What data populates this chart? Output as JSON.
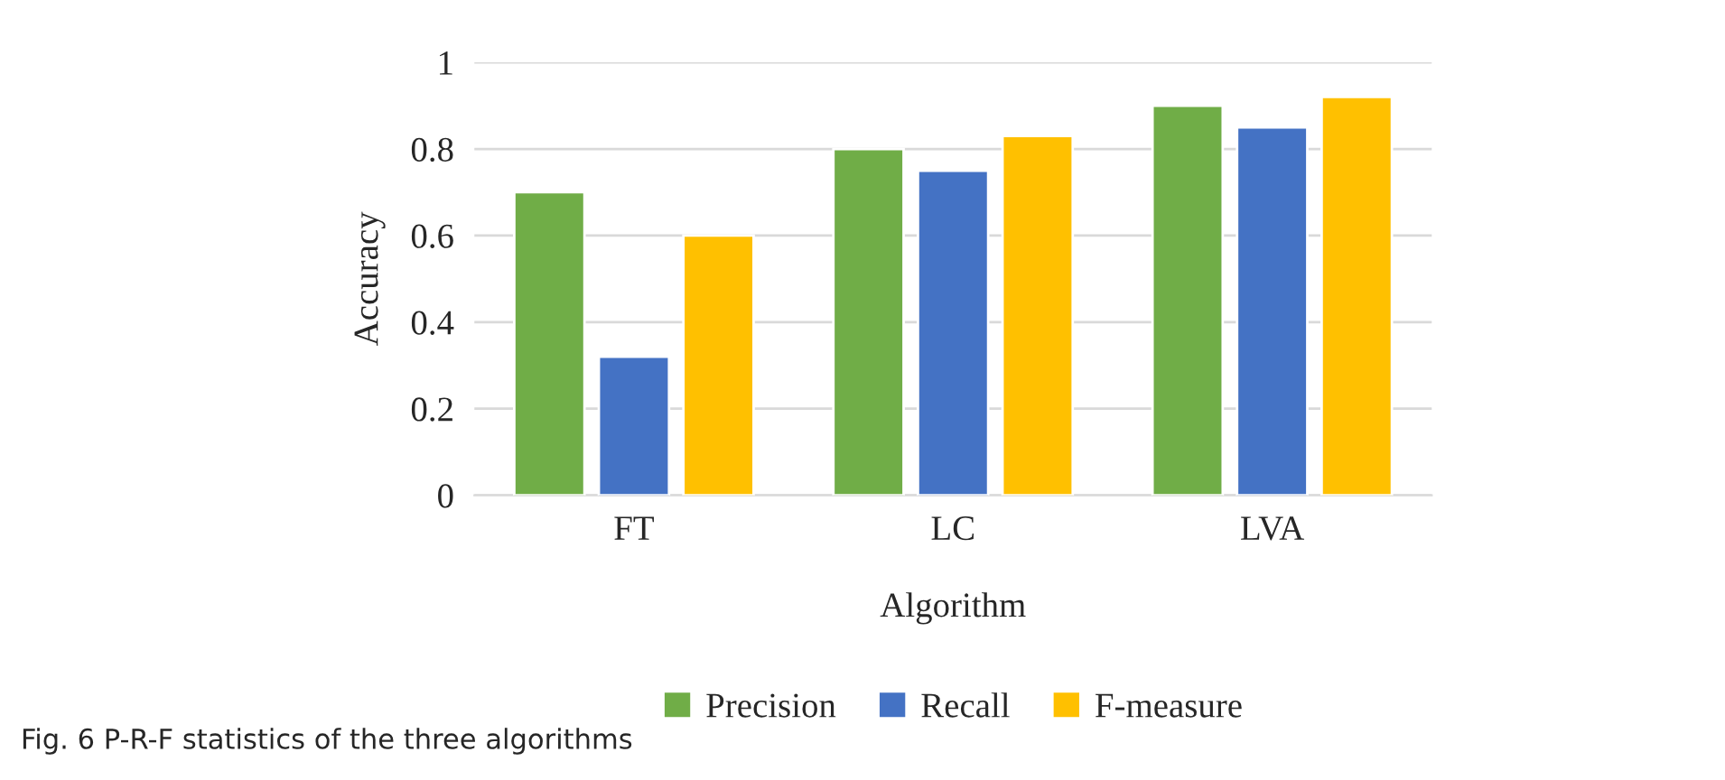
{
  "chart_data": {
    "type": "bar",
    "xlabel": "Algorithm",
    "ylabel": "Accuracy",
    "categories": [
      "FT",
      "LC",
      "LVA"
    ],
    "series": [
      {
        "name": "Precision",
        "color": "#70ad47",
        "values": [
          0.7,
          0.8,
          0.9
        ]
      },
      {
        "name": "Recall",
        "color": "#4472c4",
        "values": [
          0.32,
          0.75,
          0.85
        ]
      },
      {
        "name": "F-measure",
        "color": "#ffc000",
        "values": [
          0.6,
          0.83,
          0.92
        ]
      }
    ],
    "ylim": [
      0,
      1
    ],
    "yticks": [
      0,
      0.2,
      0.4,
      0.6,
      0.8,
      1
    ],
    "grid": "y",
    "legend": "bottom",
    "annotations": [
      "Fig. 6 P-R-F statistics of the three algorithms"
    ]
  }
}
